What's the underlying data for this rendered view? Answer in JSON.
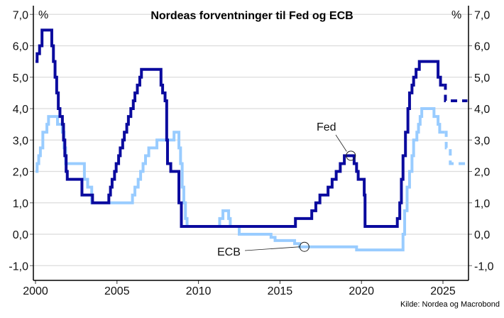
{
  "chart_data": {
    "type": "line",
    "title": "Nordeas forventninger til Fed og ECB",
    "y_unit_left": "%",
    "y_unit_right": "%",
    "source": "Kilde: Nordea og Macrobond",
    "xlim": [
      2000,
      2026.5
    ],
    "ylim": [
      -1.25,
      7.25
    ],
    "x_ticks": [
      "2000",
      "2005",
      "2010",
      "2015",
      "2020",
      "2025"
    ],
    "x_tick_values": [
      2000,
      2005,
      2010,
      2015,
      2020,
      2025
    ],
    "y_ticks": [
      "7,0",
      "6,0",
      "5,0",
      "4,0",
      "3,0",
      "2,0",
      "1,0",
      "0,0",
      "-1,0"
    ],
    "y_tick_values": [
      7,
      6,
      5,
      4,
      3,
      2,
      1,
      0,
      -1
    ],
    "grid": true,
    "step": true,
    "series": [
      {
        "name": "Fed",
        "color": "#0a0a9e",
        "label_point": [
          2019.35,
          2.5
        ],
        "actual": [
          [
            2000,
            5.5
          ],
          [
            2000.1,
            5.75
          ],
          [
            2000.25,
            6.0
          ],
          [
            2000.4,
            6.5
          ],
          [
            2001.0,
            6.0
          ],
          [
            2001.1,
            5.5
          ],
          [
            2001.2,
            5.0
          ],
          [
            2001.3,
            4.5
          ],
          [
            2001.4,
            4.0
          ],
          [
            2001.5,
            3.75
          ],
          [
            2001.65,
            3.5
          ],
          [
            2001.72,
            3.0
          ],
          [
            2001.8,
            2.5
          ],
          [
            2001.88,
            2.0
          ],
          [
            2001.95,
            1.75
          ],
          [
            2002.85,
            1.25
          ],
          [
            2003.5,
            1.0
          ],
          [
            2004.5,
            1.25
          ],
          [
            2004.6,
            1.5
          ],
          [
            2004.7,
            1.75
          ],
          [
            2004.85,
            2.0
          ],
          [
            2004.95,
            2.25
          ],
          [
            2005.1,
            2.5
          ],
          [
            2005.2,
            2.75
          ],
          [
            2005.35,
            3.0
          ],
          [
            2005.45,
            3.25
          ],
          [
            2005.6,
            3.5
          ],
          [
            2005.7,
            3.75
          ],
          [
            2005.85,
            4.0
          ],
          [
            2006.0,
            4.25
          ],
          [
            2006.1,
            4.5
          ],
          [
            2006.25,
            4.75
          ],
          [
            2006.4,
            5.0
          ],
          [
            2006.5,
            5.25
          ],
          [
            2007.7,
            4.75
          ],
          [
            2007.8,
            4.5
          ],
          [
            2007.95,
            4.25
          ],
          [
            2008.05,
            3.0
          ],
          [
            2008.1,
            2.25
          ],
          [
            2008.3,
            2.0
          ],
          [
            2008.8,
            1.0
          ],
          [
            2008.95,
            0.25
          ],
          [
            2015.95,
            0.5
          ],
          [
            2016.95,
            0.75
          ],
          [
            2017.2,
            1.0
          ],
          [
            2017.45,
            1.25
          ],
          [
            2017.95,
            1.5
          ],
          [
            2018.2,
            1.75
          ],
          [
            2018.45,
            2.0
          ],
          [
            2018.7,
            2.25
          ],
          [
            2018.95,
            2.5
          ],
          [
            2019.55,
            2.25
          ],
          [
            2019.7,
            2.0
          ],
          [
            2019.8,
            1.75
          ],
          [
            2020.17,
            1.25
          ],
          [
            2020.22,
            0.25
          ],
          [
            2022.2,
            0.5
          ],
          [
            2022.35,
            1.0
          ],
          [
            2022.45,
            1.75
          ],
          [
            2022.55,
            2.5
          ],
          [
            2022.7,
            3.25
          ],
          [
            2022.85,
            4.0
          ],
          [
            2022.95,
            4.5
          ],
          [
            2023.1,
            4.75
          ],
          [
            2023.2,
            5.0
          ],
          [
            2023.35,
            5.25
          ],
          [
            2023.55,
            5.5
          ],
          [
            2024.7,
            5.0
          ],
          [
            2024.85,
            4.75
          ],
          [
            2025.05,
            4.75
          ]
        ],
        "forecast": [
          [
            2025.05,
            4.75
          ],
          [
            2025.15,
            4.25
          ],
          [
            2026.5,
            4.25
          ]
        ]
      },
      {
        "name": "ECB",
        "color": "#99ccff",
        "label_point": [
          2016.5,
          -0.4
        ],
        "actual": [
          [
            2000,
            2.0
          ],
          [
            2000.1,
            2.25
          ],
          [
            2000.2,
            2.5
          ],
          [
            2000.3,
            2.75
          ],
          [
            2000.45,
            3.25
          ],
          [
            2000.7,
            3.5
          ],
          [
            2000.8,
            3.75
          ],
          [
            2001.35,
            3.5
          ],
          [
            2001.65,
            3.25
          ],
          [
            2001.75,
            2.75
          ],
          [
            2001.85,
            2.25
          ],
          [
            2003.0,
            1.75
          ],
          [
            2003.2,
            1.5
          ],
          [
            2003.45,
            1.0
          ],
          [
            2005.95,
            1.25
          ],
          [
            2006.1,
            1.5
          ],
          [
            2006.3,
            1.75
          ],
          [
            2006.45,
            2.0
          ],
          [
            2006.6,
            2.25
          ],
          [
            2006.75,
            2.5
          ],
          [
            2006.95,
            2.75
          ],
          [
            2007.45,
            3.0
          ],
          [
            2008.5,
            3.25
          ],
          [
            2008.8,
            2.75
          ],
          [
            2008.9,
            2.25
          ],
          [
            2009.0,
            1.5
          ],
          [
            2009.1,
            1.0
          ],
          [
            2009.2,
            0.5
          ],
          [
            2009.3,
            0.25
          ],
          [
            2011.3,
            0.5
          ],
          [
            2011.5,
            0.75
          ],
          [
            2011.85,
            0.5
          ],
          [
            2011.95,
            0.25
          ],
          [
            2012.5,
            0.0
          ],
          [
            2014.45,
            -0.1
          ],
          [
            2014.7,
            -0.2
          ],
          [
            2015.9,
            -0.3
          ],
          [
            2016.2,
            -0.4
          ],
          [
            2019.7,
            -0.5
          ],
          [
            2022.55,
            0.0
          ],
          [
            2022.65,
            0.75
          ],
          [
            2022.8,
            1.5
          ],
          [
            2022.95,
            2.0
          ],
          [
            2023.1,
            2.5
          ],
          [
            2023.2,
            3.0
          ],
          [
            2023.4,
            3.25
          ],
          [
            2023.5,
            3.5
          ],
          [
            2023.6,
            3.75
          ],
          [
            2023.7,
            4.0
          ],
          [
            2024.45,
            3.75
          ],
          [
            2024.7,
            3.5
          ],
          [
            2024.8,
            3.25
          ],
          [
            2025.1,
            3.25
          ]
        ],
        "forecast": [
          [
            2025.1,
            3.25
          ],
          [
            2025.2,
            2.75
          ],
          [
            2025.45,
            2.25
          ],
          [
            2026.5,
            2.25
          ]
        ]
      }
    ]
  }
}
